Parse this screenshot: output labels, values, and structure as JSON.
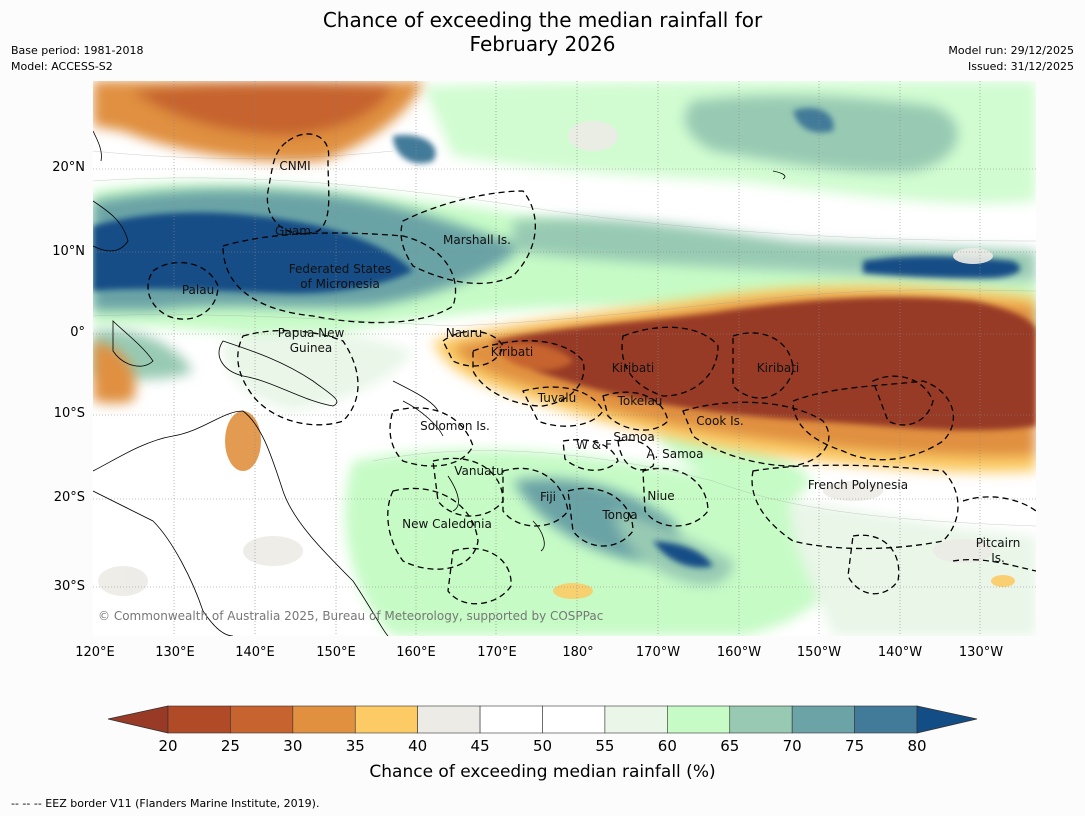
{
  "title_line1": "Chance of exceeding the median rainfall for",
  "title_line2": "February 2026",
  "base_period": "Base period: 1981-2018",
  "model": "Model: ACCESS-S2",
  "model_run": "Model run: 29/12/2025",
  "issued": "Issued: 31/12/2025",
  "lat_labels": [
    "20°N",
    "10°N",
    "0°",
    "10°S",
    "20°S",
    "30°S"
  ],
  "lon_labels": [
    "120°E",
    "130°E",
    "140°E",
    "150°E",
    "160°E",
    "170°E",
    "180°",
    "170°W",
    "160°W",
    "150°W",
    "140°W",
    "130°W"
  ],
  "regions": [
    {
      "name": "CNMI"
    },
    {
      "name": "Guam"
    },
    {
      "name": "Marshall Is."
    },
    {
      "name": "Federated States",
      "line2": "of Micronesia"
    },
    {
      "name": "Palau"
    },
    {
      "name": "Papua New",
      "line2": "Guinea"
    },
    {
      "name": "Nauru"
    },
    {
      "name": "Kiribati"
    },
    {
      "name": "Kiribati"
    },
    {
      "name": "Kiribati"
    },
    {
      "name": "Tuvalu"
    },
    {
      "name": "Tokelau"
    },
    {
      "name": "Cook Is."
    },
    {
      "name": "Solomon Is."
    },
    {
      "name": "Samoa"
    },
    {
      "name": "W & F"
    },
    {
      "name": "A. Samoa"
    },
    {
      "name": "Vanuatu"
    },
    {
      "name": "Fiji"
    },
    {
      "name": "Niue"
    },
    {
      "name": "Tonga"
    },
    {
      "name": "French Polynesia"
    },
    {
      "name": "New Caledonia"
    },
    {
      "name": "Pitcairn",
      "line2": "Is."
    }
  ],
  "copyright": "© Commonwealth of Australia 2025, Bureau of Meteorology, supported by COSPPac",
  "colorbar": {
    "ticks": [
      "20",
      "25",
      "30",
      "35",
      "40",
      "45",
      "50",
      "55",
      "60",
      "65",
      "70",
      "75",
      "80"
    ],
    "colors": [
      "#b04a27",
      "#c6632f",
      "#e0903f",
      "#fccb65",
      "#ecebe6",
      "#ffffff",
      "#ffffff",
      "#e9f6e8",
      "#c6fbc6",
      "#98cab3",
      "#6ba3a6",
      "#427a99"
    ],
    "under_color": "#983a25",
    "over_color": "#134d86",
    "label": "Chance of exceeding median rainfall (%)"
  },
  "legend_text": "--  --  -- EEZ border V11 (Flanders Marine Institute, 2019)."
}
